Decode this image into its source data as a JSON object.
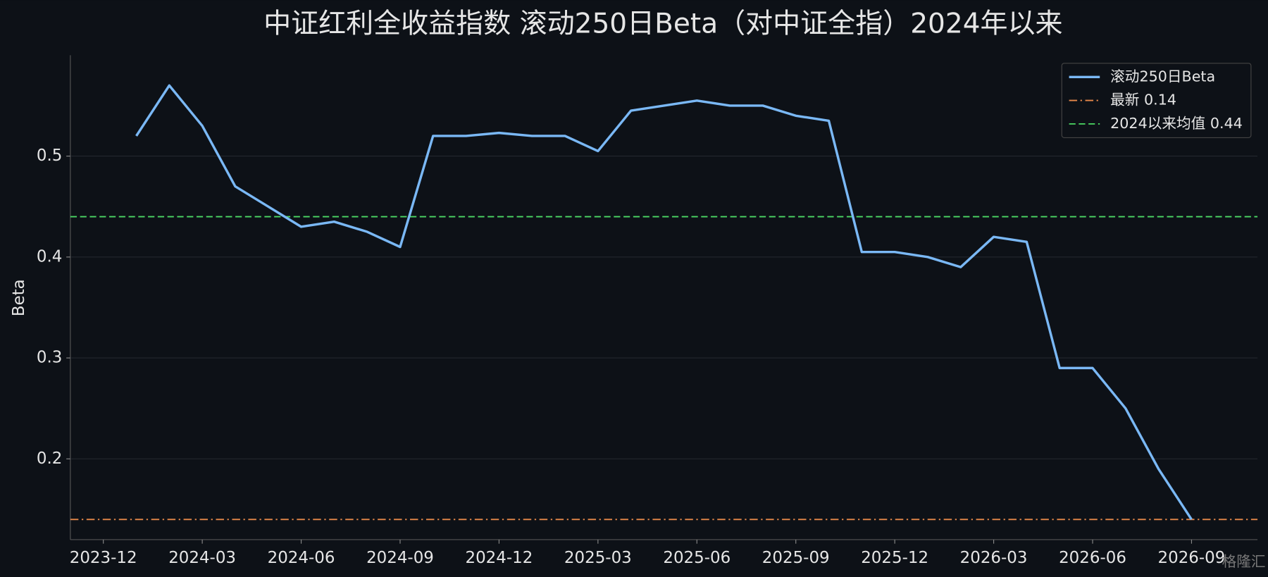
{
  "chart_data": {
    "type": "line",
    "title": "中证红利全收益指数 滚动250日Beta（对中证全指）2024年以来",
    "y_label": "Beta",
    "x": [
      "2024-01",
      "2024-02",
      "2024-03",
      "2024-04",
      "2024-05",
      "2024-06",
      "2024-07",
      "2024-08",
      "2024-09",
      "2024-10",
      "2024-11",
      "2024-12",
      "2025-01",
      "2025-02",
      "2025-03",
      "2025-04",
      "2025-05",
      "2025-06",
      "2025-07",
      "2025-08",
      "2025-09",
      "2025-10",
      "2025-11",
      "2025-12",
      "2026-01",
      "2026-02",
      "2026-03",
      "2026-04",
      "2026-05",
      "2026-06",
      "2026-07",
      "2026-08",
      "2026-09"
    ],
    "series": [
      {
        "name": "滚动250日Beta",
        "color": "#7ab8f5",
        "values": [
          0.52,
          0.57,
          0.53,
          0.47,
          0.45,
          0.43,
          0.435,
          0.425,
          0.41,
          0.52,
          0.52,
          0.523,
          0.52,
          0.52,
          0.505,
          0.545,
          0.55,
          0.555,
          0.55,
          0.55,
          0.54,
          0.535,
          0.405,
          0.405,
          0.4,
          0.39,
          0.42,
          0.415,
          0.29,
          0.29,
          0.25,
          0.19,
          0.14
        ]
      }
    ],
    "hlines": [
      {
        "name": "最新 0.14",
        "value": 0.14,
        "color": "#e8894a",
        "style": "dashdot"
      },
      {
        "name": "2024以来均值 0.44",
        "value": 0.44,
        "color": "#4cd964",
        "style": "dashed"
      }
    ],
    "xlim": [
      "2023-11",
      "2026-11"
    ],
    "xticks": [
      "2023-12",
      "2024-03",
      "2024-06",
      "2024-09",
      "2024-12",
      "2025-03",
      "2025-06",
      "2025-09",
      "2025-12",
      "2026-03",
      "2026-06",
      "2026-09"
    ],
    "ylim": [
      0.12,
      0.6
    ],
    "yticks": [
      0.2,
      0.3,
      0.4,
      0.5
    ],
    "grid": true,
    "legend": "upper right",
    "watermark": "格隆汇"
  }
}
